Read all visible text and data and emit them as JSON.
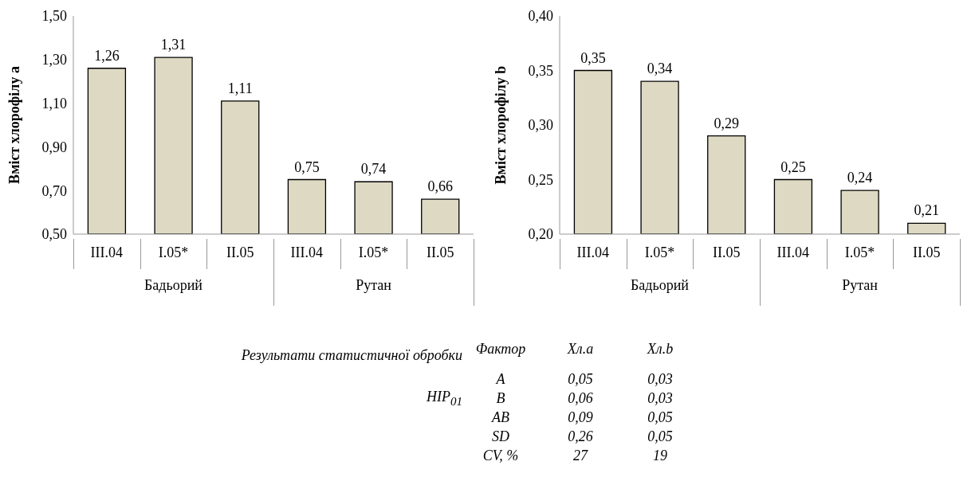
{
  "chart_data": [
    {
      "type": "bar",
      "ylabel": "Вміст хлорофілу a",
      "categories": [
        "III.04",
        "I.05*",
        "II.05",
        "III.04",
        "I.05*",
        "II.05"
      ],
      "values": [
        1.26,
        1.31,
        1.11,
        0.75,
        0.74,
        0.66
      ],
      "value_labels": [
        "1,26",
        "1,31",
        "1,11",
        "0,75",
        "0,74",
        "0,66"
      ],
      "color": "#ddd9c3",
      "ylim": [
        0.5,
        1.5
      ],
      "yticks": [
        {
          "value": 0.5,
          "label": "0,50"
        },
        {
          "value": 0.7,
          "label": "0,70"
        },
        {
          "value": 0.9,
          "label": "0,90"
        },
        {
          "value": 1.1,
          "label": "1,10"
        },
        {
          "value": 1.3,
          "label": "1,30"
        },
        {
          "value": 1.5,
          "label": "1,50"
        }
      ],
      "annotations": [
        "Бадьорий",
        "Рутан"
      ]
    },
    {
      "type": "bar",
      "ylabel": "Вміст хлорофілу b",
      "categories": [
        "III.04",
        "I.05*",
        "II.05",
        "III.04",
        "I.05*",
        "II.05"
      ],
      "values": [
        0.35,
        0.34,
        0.29,
        0.25,
        0.24,
        0.21
      ],
      "value_labels": [
        "0,35",
        "0,34",
        "0,29",
        "0,25",
        "0,24",
        "0,21"
      ],
      "color": "#ddd9c3",
      "ylim": [
        0.2,
        0.4
      ],
      "yticks": [
        {
          "value": 0.2,
          "label": "0,20"
        },
        {
          "value": 0.25,
          "label": "0,25"
        },
        {
          "value": 0.3,
          "label": "0,30"
        },
        {
          "value": 0.35,
          "label": "0,35"
        },
        {
          "value": 0.4,
          "label": "0,40"
        }
      ],
      "annotations": [
        "Бадьорий",
        "Рутан"
      ]
    },
    {
      "type": "other",
      "annotations": [
        "Результати статистичної обробки",
        "НІР$_{01}$",
        "Фактор",
        "Хл.a",
        "Хл.b",
        "A",
        "0,05",
        "0,03",
        "B",
        "0,06",
        "0,03",
        "AB",
        "0,09",
        "0,05",
        "SD",
        "0,26",
        "0,05",
        "CV, %",
        "27",
        "19"
      ]
    }
  ]
}
